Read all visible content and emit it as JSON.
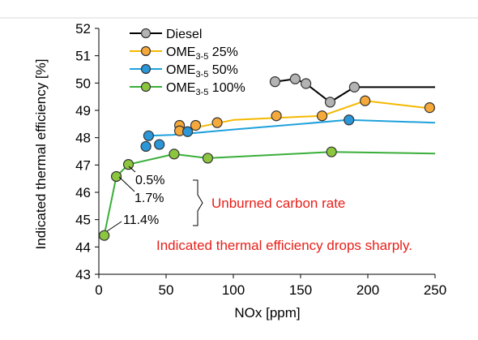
{
  "chart_data": {
    "type": "scatter",
    "xlabel": "NOx [ppm]",
    "ylabel": "Indicated thermal efficiency [%]",
    "xlim": [
      0,
      250
    ],
    "ylim": [
      43,
      52
    ],
    "x_ticks": [
      "0",
      "50",
      "100",
      "150",
      "200",
      "250"
    ],
    "y_ticks": [
      "43",
      "44",
      "45",
      "46",
      "47",
      "48",
      "49",
      "50",
      "51",
      "52"
    ],
    "grid": false,
    "legend_position": "top-left",
    "series": [
      {
        "name": "Diesel",
        "name_base": "Diesel",
        "name_sub": "",
        "name_suffix": "",
        "color": "#000000",
        "marker_color": "#b3b3b3",
        "points": [
          [
            131,
            50.05
          ],
          [
            146,
            50.15
          ],
          [
            154,
            49.98
          ],
          [
            172,
            49.3
          ],
          [
            190,
            49.85
          ]
        ],
        "trend": [
          [
            131,
            50.05
          ],
          [
            146,
            50.15
          ],
          [
            154,
            49.98
          ],
          [
            172,
            49.3
          ],
          [
            190,
            49.85
          ],
          [
            250,
            49.85
          ]
        ]
      },
      {
        "name": "OME3-5 25%",
        "name_base": "OME",
        "name_sub": "3-5",
        "name_suffix": " 25%",
        "color": "#f5b800",
        "marker_color": "#f6a93b",
        "points": [
          [
            60,
            48.45
          ],
          [
            60,
            48.25
          ],
          [
            72,
            48.45
          ],
          [
            88,
            48.55
          ],
          [
            132,
            48.8
          ],
          [
            166,
            48.8
          ],
          [
            198,
            49.35
          ],
          [
            246,
            49.1
          ]
        ],
        "trend": [
          [
            60,
            48.25
          ],
          [
            100,
            48.65
          ],
          [
            166,
            48.8
          ],
          [
            198,
            49.35
          ],
          [
            250,
            49.05
          ]
        ]
      },
      {
        "name": "OME3-5 50%",
        "name_base": "OME",
        "name_sub": "3-5",
        "name_suffix": " 50%",
        "color": "#1fa1dc",
        "marker_color": "#2b96d8",
        "points": [
          [
            35,
            47.68
          ],
          [
            37,
            48.07
          ],
          [
            45,
            47.75
          ],
          [
            66,
            48.22
          ],
          [
            186,
            48.65
          ]
        ],
        "trend": [
          [
            37,
            48.07
          ],
          [
            55,
            48.1
          ],
          [
            100,
            48.3
          ],
          [
            150,
            48.5
          ],
          [
            185,
            48.65
          ],
          [
            250,
            48.55
          ]
        ]
      },
      {
        "name": "OME3-5 100%",
        "name_base": "OME",
        "name_sub": "3-5",
        "name_suffix": " 100%",
        "color": "#3aae3a",
        "marker_color": "#8cc63f",
        "points": [
          [
            4,
            44.42
          ],
          [
            13,
            46.58
          ],
          [
            22,
            47.02
          ],
          [
            56,
            47.4
          ],
          [
            81,
            47.25
          ],
          [
            173,
            47.48
          ]
        ],
        "trend": [
          [
            4,
            44.42
          ],
          [
            13,
            46.58
          ],
          [
            22,
            47.02
          ],
          [
            56,
            47.4
          ],
          [
            81,
            47.25
          ],
          [
            173,
            47.48
          ],
          [
            250,
            47.42
          ]
        ]
      }
    ],
    "annotations": {
      "rate_1": "0.5%",
      "rate_2": "1.7%",
      "rate_3": "11.4%",
      "label_unburned": "Unburned carbon rate",
      "label_drop": "Indicated thermal efficiency drops sharply."
    }
  }
}
